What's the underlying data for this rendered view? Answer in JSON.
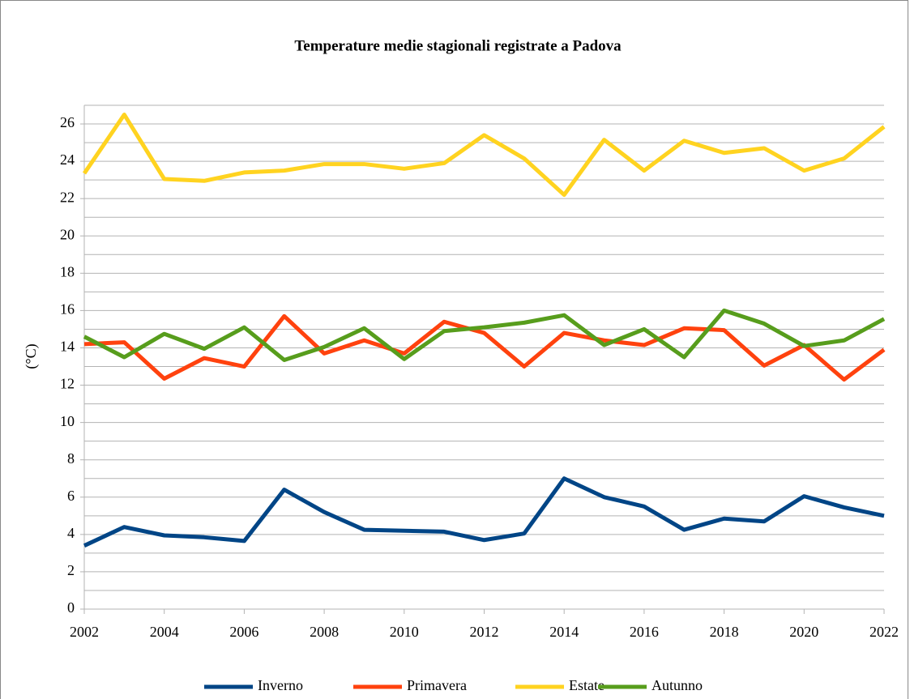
{
  "chart_data": {
    "type": "line",
    "title": "Temperature medie stagionali registrate a Padova",
    "y_label": "(°C)",
    "x": [
      2002,
      2003,
      2004,
      2005,
      2006,
      2007,
      2008,
      2009,
      2010,
      2011,
      2012,
      2013,
      2014,
      2015,
      2016,
      2017,
      2018,
      2019,
      2020,
      2021,
      2022
    ],
    "series": [
      {
        "name": "Inverno",
        "color": "#004586",
        "values": [
          3.4,
          4.4,
          3.95,
          3.85,
          3.65,
          6.4,
          5.2,
          4.25,
          4.2,
          4.15,
          3.7,
          4.05,
          7.0,
          6.0,
          5.5,
          4.25,
          4.85,
          4.7,
          6.05,
          5.45,
          5.0
        ]
      },
      {
        "name": "Primavera",
        "color": "#ff420e",
        "values": [
          14.2,
          14.3,
          12.35,
          13.45,
          13.0,
          15.7,
          13.7,
          14.4,
          13.7,
          15.4,
          14.8,
          13.0,
          14.8,
          14.4,
          14.15,
          15.05,
          14.95,
          13.05,
          14.15,
          12.3,
          13.9
        ]
      },
      {
        "name": "Estate",
        "color": "#ffd320",
        "values": [
          23.35,
          26.5,
          23.05,
          22.95,
          23.4,
          23.5,
          23.85,
          23.85,
          23.6,
          23.9,
          25.4,
          24.15,
          22.2,
          25.15,
          23.5,
          25.1,
          24.45,
          24.7,
          23.5,
          24.15,
          25.85
        ]
      },
      {
        "name": "Autunno",
        "color": "#579d1c",
        "values": [
          14.6,
          13.5,
          14.75,
          13.95,
          15.1,
          13.35,
          14.05,
          15.05,
          13.4,
          14.9,
          15.1,
          15.35,
          15.75,
          14.15,
          15.0,
          13.5,
          16.0,
          15.3,
          14.1,
          14.4,
          15.55
        ]
      }
    ],
    "xlim": [
      2002,
      2022
    ],
    "xticks": [
      2002,
      2004,
      2006,
      2008,
      2010,
      2012,
      2014,
      2016,
      2018,
      2020,
      2022
    ],
    "ylim": [
      0,
      27
    ],
    "yticks": [
      0,
      2,
      4,
      6,
      8,
      10,
      12,
      14,
      16,
      18,
      20,
      22,
      24,
      26
    ],
    "minor_yticks": [
      1,
      3,
      5,
      7,
      9,
      11,
      13,
      15,
      17,
      19,
      21,
      23,
      25,
      27
    ],
    "grid": true,
    "legend": "bottom"
  }
}
